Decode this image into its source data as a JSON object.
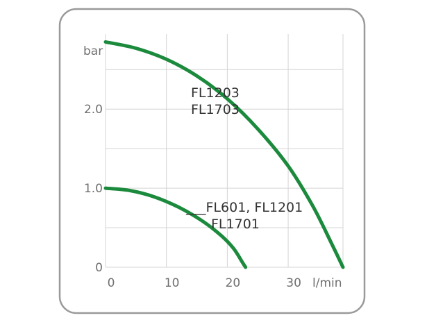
{
  "chart_data": {
    "type": "line",
    "xlabel": "l/min",
    "ylabel": "bar",
    "xlim": [
      0,
      39
    ],
    "ylim": [
      0,
      2.95
    ],
    "xticks": [
      {
        "value": 0,
        "label": "0"
      },
      {
        "value": 10,
        "label": "10"
      },
      {
        "value": 20,
        "label": "20"
      },
      {
        "value": 30,
        "label": "30"
      }
    ],
    "yticks": [
      {
        "value": 0,
        "label": "0"
      },
      {
        "value": 1.0,
        "label": "1.0"
      },
      {
        "value": 2.0,
        "label": "2.0"
      }
    ],
    "grid": true,
    "x_grid": [
      0,
      10,
      20,
      30,
      39
    ],
    "y_grid": [
      0,
      0.5,
      1.0,
      1.5,
      2.0,
      2.5
    ],
    "series": [
      {
        "label_lines": [
          "FL1203",
          "FL1703"
        ],
        "color": "#1b8a3c",
        "points": [
          [
            0,
            2.85
          ],
          [
            5,
            2.77
          ],
          [
            10,
            2.63
          ],
          [
            15,
            2.42
          ],
          [
            20,
            2.13
          ],
          [
            25,
            1.75
          ],
          [
            30,
            1.28
          ],
          [
            34,
            0.78
          ],
          [
            37,
            0.32
          ],
          [
            39,
            0.0
          ]
        ]
      },
      {
        "label_lines": [
          "___FL601, FL1201",
          "FL1701"
        ],
        "color": "#1b8a3c",
        "points": [
          [
            0,
            1.0
          ],
          [
            4,
            0.97
          ],
          [
            8,
            0.89
          ],
          [
            12,
            0.76
          ],
          [
            16,
            0.58
          ],
          [
            19,
            0.4
          ],
          [
            21,
            0.24
          ],
          [
            22.5,
            0.06
          ],
          [
            23,
            0.0
          ]
        ]
      }
    ]
  }
}
